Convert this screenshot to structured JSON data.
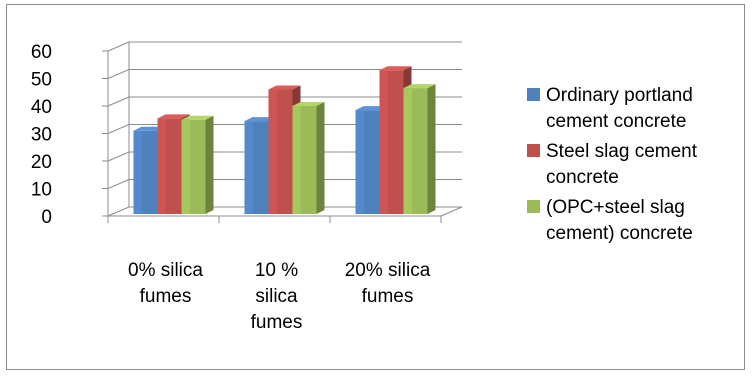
{
  "chart_data": {
    "type": "bar",
    "style": "3d-clustered-column",
    "categories": [
      [
        "0% silica",
        "fumes"
      ],
      [
        "10 %",
        "silica",
        "fumes"
      ],
      [
        "20% silica",
        "fumes"
      ]
    ],
    "series": [
      {
        "name": [
          "Ordinary portland",
          "cement concrete"
        ],
        "values": [
          31,
          34.5,
          38.5
        ],
        "color": "#4f81bd"
      },
      {
        "name": [
          "Steel slag cement",
          "concrete"
        ],
        "values": [
          35.5,
          46,
          53
        ],
        "color": "#c0504d"
      },
      {
        "name": [
          "(OPC+steel slag",
          "cement) concrete"
        ],
        "values": [
          35,
          40,
          46.5
        ],
        "color": "#9bbb59"
      }
    ],
    "yticks": [
      0,
      10,
      20,
      30,
      40,
      50,
      60
    ],
    "ylim": [
      0,
      60
    ],
    "grid": true,
    "legend_position": "right"
  }
}
